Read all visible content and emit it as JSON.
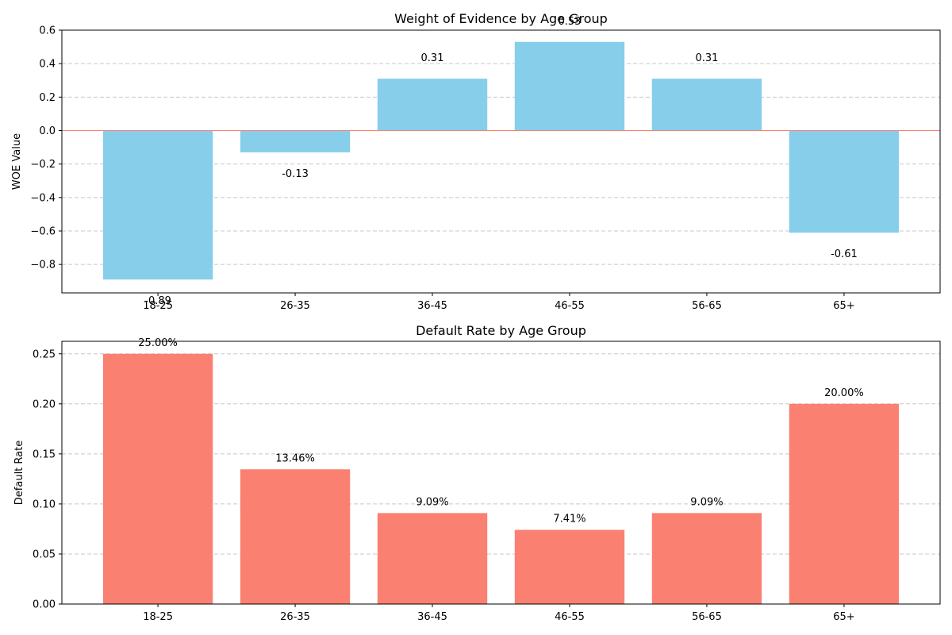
{
  "chart_data": [
    {
      "type": "bar",
      "title": "Weight of Evidence by Age Group",
      "xlabel": "",
      "ylabel": "WOE Value",
      "categories": [
        "18-25",
        "26-35",
        "36-45",
        "46-55",
        "56-65",
        "65+"
      ],
      "values": [
        -0.89,
        -0.13,
        0.31,
        0.53,
        0.31,
        -0.61
      ],
      "data_labels": [
        "-0.89",
        "-0.13",
        "0.31",
        "0.53",
        "0.31",
        "-0.61"
      ],
      "ylim": [
        -0.97,
        0.6
      ],
      "yticks": [
        -0.8,
        -0.6,
        -0.4,
        -0.2,
        0.0,
        0.2,
        0.4,
        0.6
      ],
      "ytick_labels": [
        "−0.8",
        "−0.6",
        "−0.4",
        "−0.2",
        "0.0",
        "0.2",
        "0.4",
        "0.6"
      ],
      "grid": true,
      "reference_line_y": 0,
      "bar_color": "#87ceeb",
      "reference_line_color": "#fa8072"
    },
    {
      "type": "bar",
      "title": "Default Rate by Age Group",
      "xlabel": "",
      "ylabel": "Default Rate",
      "categories": [
        "18-25",
        "26-35",
        "36-45",
        "46-55",
        "56-65",
        "65+"
      ],
      "values": [
        0.25,
        0.1346,
        0.0909,
        0.0741,
        0.0909,
        0.2
      ],
      "data_labels": [
        "25.00%",
        "13.46%",
        "9.09%",
        "7.41%",
        "9.09%",
        "20.00%"
      ],
      "ylim": [
        0,
        0.2625
      ],
      "yticks": [
        0.0,
        0.05,
        0.1,
        0.15,
        0.2,
        0.25
      ],
      "ytick_labels": [
        "0.00",
        "0.05",
        "0.10",
        "0.15",
        "0.20",
        "0.25"
      ],
      "grid": true,
      "bar_color": "#fa8072"
    }
  ]
}
